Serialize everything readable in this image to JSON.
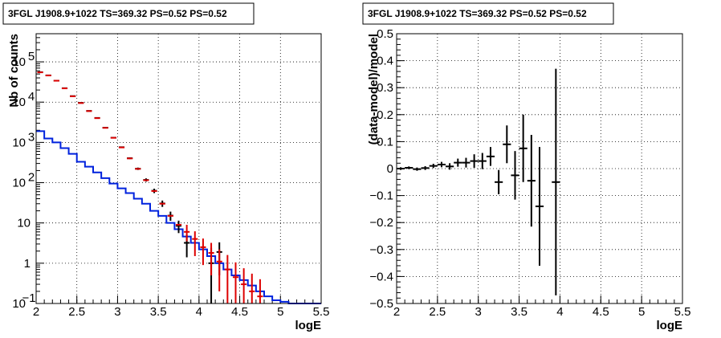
{
  "chart_data": [
    {
      "type": "histogram",
      "title": "3FGL J1908.9+1022 TS=369.32 PS=0.52 PS=0.52",
      "xlabel": "logE",
      "ylabel": "Nb of counts",
      "xlim": [
        2,
        5.5
      ],
      "ylim": [
        0.1,
        500000
      ],
      "yscale": "log",
      "grid": true,
      "x_ticks": [
        "2",
        "2.5",
        "3",
        "3.5",
        "4",
        "4.5",
        "5",
        "5.5"
      ],
      "y_ticks": [
        {
          "label": "10",
          "sup": "−1",
          "value": 0.1
        },
        {
          "label": "1",
          "sup": "",
          "value": 1
        },
        {
          "label": "10",
          "sup": "",
          "value": 10
        },
        {
          "label": "10",
          "sup": "2",
          "value": 100
        },
        {
          "label": "10",
          "sup": "3",
          "value": 1000
        },
        {
          "label": "10",
          "sup": "4",
          "value": 10000
        },
        {
          "label": "10",
          "sup": "5",
          "value": 100000
        }
      ],
      "bin_edges": [
        2.0,
        2.1,
        2.2,
        2.3,
        2.4,
        2.5,
        2.6,
        2.7,
        2.8,
        2.9,
        3.0,
        3.1,
        3.2,
        3.3,
        3.4,
        3.5,
        3.6,
        3.7,
        3.8,
        3.9,
        4.0,
        4.1,
        4.2,
        4.3,
        4.4,
        4.5,
        4.6,
        4.7,
        4.8,
        4.9,
        5.0,
        5.1,
        5.2,
        5.3,
        5.4,
        5.5
      ],
      "series": [
        {
          "role": "background model histogram",
          "color": "#0022dd",
          "values": [
            1900,
            1250,
            1000,
            720,
            520,
            330,
            250,
            180,
            130,
            95,
            72,
            55,
            40,
            30,
            20,
            15,
            10,
            7,
            4.6,
            3.2,
            2.2,
            1.5,
            1.0,
            0.7,
            0.5,
            0.38,
            0.28,
            0.2,
            0.15,
            0.12,
            0.11,
            0.1,
            0.1,
            0.1,
            0.1
          ]
        },
        {
          "role": "model points",
          "color": "#dd0000",
          "x": [
            2.05,
            2.15,
            2.25,
            2.35,
            2.45,
            2.55,
            2.65,
            2.75,
            2.85,
            2.95,
            3.05,
            3.15,
            3.25,
            3.35,
            3.45,
            3.55,
            3.65,
            3.75,
            3.85,
            3.95,
            4.05,
            4.15,
            4.25,
            4.35,
            4.45,
            4.55,
            4.65,
            4.75
          ],
          "y": [
            55000,
            46000,
            34000,
            22000,
            14000,
            9500,
            6000,
            4000,
            2300,
            1300,
            750,
            400,
            220,
            115,
            62,
            30,
            15,
            9,
            6,
            4,
            2.5,
            1.8,
            1.1,
            0.7,
            0.45,
            0.3,
            0.2,
            0.15
          ],
          "err_low": [
            0,
            0,
            0,
            0,
            0,
            0,
            0,
            0,
            0,
            0,
            0,
            0,
            0,
            0,
            0,
            0,
            0,
            0,
            2.5,
            2.5,
            1.6,
            1.3,
            0.9,
            0.6,
            0.4,
            0.25,
            0.15,
            0.12
          ],
          "err_high": [
            0,
            0,
            0,
            0,
            0,
            0,
            0,
            0,
            0,
            0,
            0,
            0,
            0,
            0,
            0,
            0,
            0,
            0,
            3,
            2.2,
            1.6,
            1.4,
            1.1,
            0.9,
            0.6,
            0.45,
            0.35,
            0.25
          ]
        },
        {
          "role": "data points",
          "color": "#000000",
          "x": [
            2.05,
            2.15,
            2.25,
            2.35,
            2.45,
            2.55,
            2.65,
            2.75,
            2.85,
            2.95,
            3.05,
            3.15,
            3.25,
            3.35,
            3.45,
            3.55,
            3.65,
            3.75,
            3.85,
            4.15,
            4.25
          ],
          "y": [
            55500,
            46200,
            34100,
            22200,
            14100,
            9600,
            6050,
            4050,
            2320,
            1310,
            760,
            405,
            222,
            117,
            63,
            30.5,
            15.2,
            8.5,
            3.2,
            1.0,
            1.9
          ],
          "err_low": [
            235,
            215,
            185,
            149,
            119,
            98,
            78,
            64,
            48,
            36,
            27.6,
            20,
            15,
            10.8,
            8,
            5.5,
            3.9,
            2.9,
            1.8,
            0.95,
            1.4
          ],
          "err_high": [
            235,
            215,
            185,
            149,
            119,
            98,
            78,
            64,
            48,
            36,
            27.6,
            20,
            15,
            10.8,
            8,
            5.5,
            3.9,
            2.9,
            1.8,
            1.4,
            1.4
          ]
        }
      ]
    },
    {
      "type": "scatter",
      "title": "3FGL J1908.9+1022 TS=369.32 PS=0.52 PS=0.52",
      "xlabel": "logE",
      "ylabel": "(data-model)/model",
      "xlim": [
        2,
        5.5
      ],
      "ylim": [
        -0.5,
        0.5
      ],
      "grid": true,
      "x_ticks": [
        "2",
        "2.5",
        "3",
        "3.5",
        "4",
        "4.5",
        "5",
        "5.5"
      ],
      "y_ticks": [
        "0.5",
        "0.4",
        "0.3",
        "0.2",
        "0.1",
        "0",
        "−0.1",
        "−0.2",
        "−0.3",
        "−0.4",
        "−0.5"
      ],
      "series": [
        {
          "role": "residuals",
          "color": "#000000",
          "x": [
            2.05,
            2.15,
            2.25,
            2.35,
            2.45,
            2.55,
            2.65,
            2.75,
            2.85,
            2.95,
            3.05,
            3.15,
            3.25,
            3.35,
            3.45,
            3.55,
            3.65,
            3.75,
            3.95
          ],
          "y": [
            0.0,
            0.003,
            -0.002,
            0.002,
            0.01,
            0.015,
            0.008,
            0.022,
            0.022,
            0.028,
            0.028,
            0.045,
            -0.05,
            0.09,
            -0.025,
            0.075,
            -0.045,
            -0.14,
            -0.05
          ],
          "err": [
            0.005,
            0.005,
            0.006,
            0.007,
            0.008,
            0.01,
            0.012,
            0.015,
            0.018,
            0.025,
            0.03,
            0.035,
            0.045,
            0.07,
            0.09,
            0.125,
            0.17,
            0.22,
            0.42
          ]
        }
      ]
    }
  ]
}
